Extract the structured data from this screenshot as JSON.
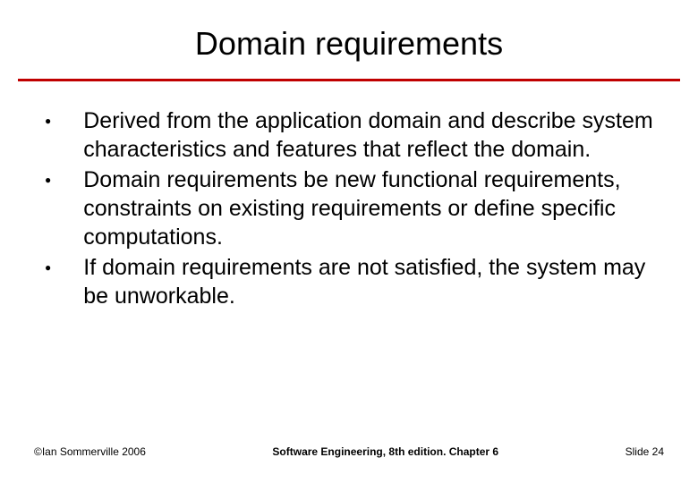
{
  "slide": {
    "title": "Domain requirements",
    "title_fontsize": 36,
    "title_color": "#000000",
    "divider_color": "#c00000",
    "divider_height": 3,
    "background_color": "#ffffff",
    "bullets": [
      "Derived from the application domain and describe system characteristics and features that reflect the domain.",
      "Domain requirements be new functional requirements, constraints on existing requirements or define specific computations.",
      "If domain requirements are not satisfied, the system may be unworkable."
    ],
    "bullet_fontsize": 25,
    "bullet_color": "#000000",
    "bullet_marker": "●"
  },
  "footer": {
    "left": "©Ian Sommerville 2006",
    "center": "Software Engineering, 8th edition. Chapter 6",
    "right_prefix": "Slide ",
    "slide_number": "24",
    "fontsize": 12,
    "color": "#000000"
  }
}
